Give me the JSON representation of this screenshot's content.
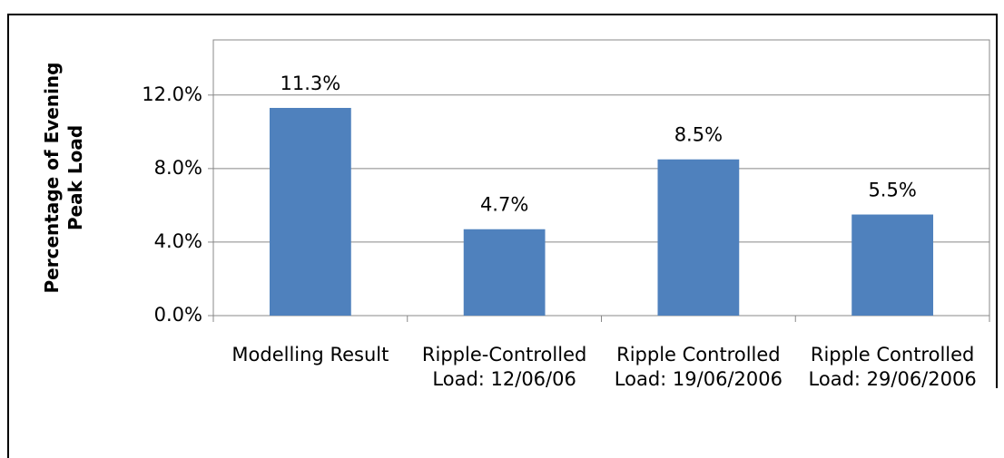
{
  "chart_data": {
    "type": "bar",
    "y_axis_label": "Percentage of Evening Peak Load",
    "categories": [
      "Modelling Result",
      "Ripple-Controlled Load: 12/06/06",
      "Ripple Controlled Load: 19/06/2006",
      "Ripple Controlled Load: 29/06/2006"
    ],
    "values": [
      11.3,
      4.7,
      8.5,
      5.5
    ],
    "value_labels": [
      "11.3%",
      "4.7%",
      "8.5%",
      "5.5%"
    ],
    "color": "#4f81bd",
    "ylim": [
      0,
      15
    ],
    "yticks": [
      {
        "value": 0,
        "label": "0.0%"
      },
      {
        "value": 4,
        "label": "4.0%"
      },
      {
        "value": 8,
        "label": "8.0%"
      },
      {
        "value": 12,
        "label": "12.0%"
      }
    ],
    "grid": true
  }
}
